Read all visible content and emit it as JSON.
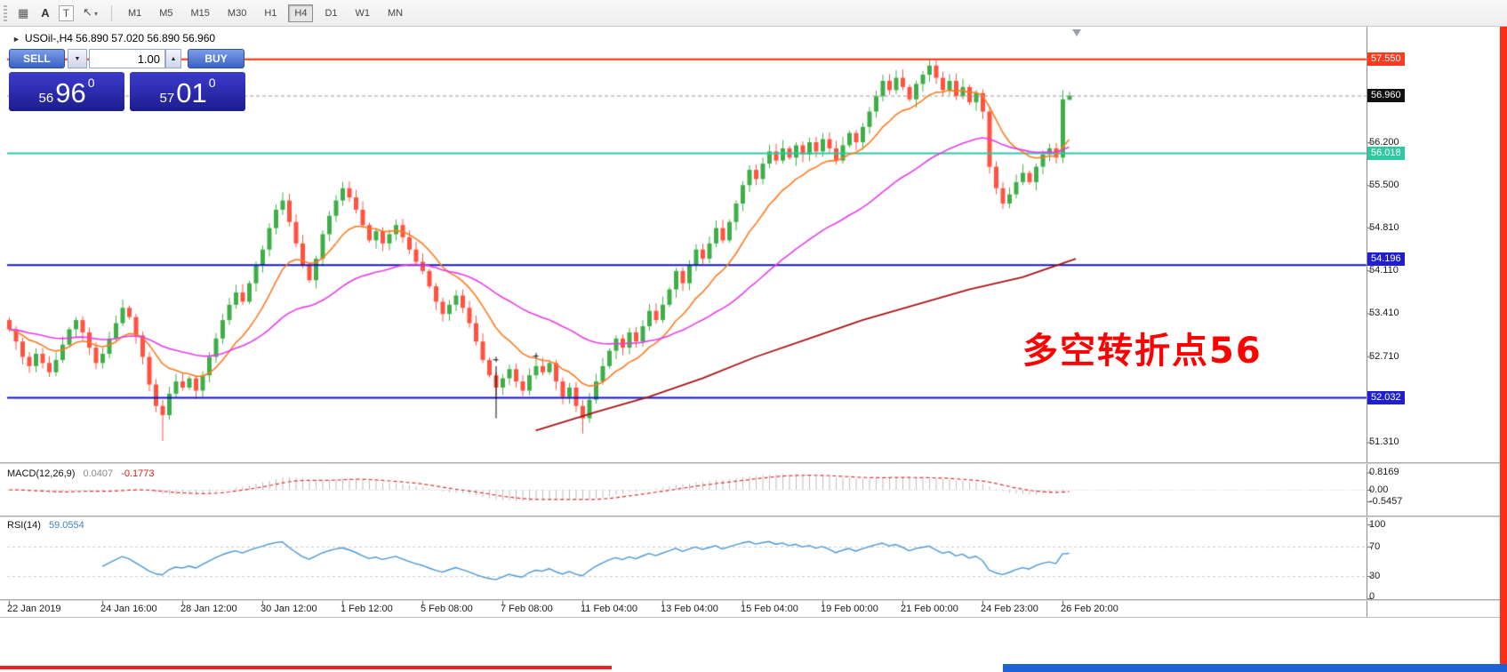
{
  "toolbar": {
    "timeframes": [
      "M1",
      "M5",
      "M15",
      "M30",
      "H1",
      "H4",
      "D1",
      "W1",
      "MN"
    ],
    "active_timeframe": "H4",
    "icons": {
      "grid": "▦",
      "text_a": "A",
      "text_t": "T",
      "cursor": "↖",
      "dropdown": "▾"
    }
  },
  "chart_header": {
    "marker": "►",
    "text": "USOil-,H4  56.890 57.020 56.890 56.960"
  },
  "trade_panel": {
    "sell_label": "SELL",
    "buy_label": "BUY",
    "volume": "1.00",
    "dropdown_glyph": "▼",
    "stepper_glyph": "▲",
    "bid": {
      "small": "56",
      "big": "96",
      "sup": "0"
    },
    "ask": {
      "small": "57",
      "big": "01",
      "sup": "0"
    },
    "button_color": "#3a63c4",
    "panel_color": "#2323b0"
  },
  "annotation": {
    "text": "多空转折点56",
    "color": "#ff0000"
  },
  "price_axis": {
    "ticks": [
      {
        "label": "56.200",
        "price": 56.2
      },
      {
        "label": "55.500",
        "price": 55.5
      },
      {
        "label": "54.810",
        "price": 54.81
      },
      {
        "label": "54.110",
        "price": 54.11
      },
      {
        "label": "53.410",
        "price": 53.41
      },
      {
        "label": "52.710",
        "price": 52.71
      },
      {
        "label": "51.310",
        "price": 51.31
      }
    ],
    "special": [
      {
        "label": "57.550",
        "price": 57.55,
        "bg": "#ff3b1f"
      },
      {
        "label": "56.960",
        "price": 56.96,
        "bg": "#101010"
      },
      {
        "label": "56.018",
        "price": 56.018,
        "bg": "#2ec9a0"
      },
      {
        "label": "54.196",
        "price": 54.196,
        "bg": "#1f1fd0"
      },
      {
        "label": "52.032",
        "price": 52.032,
        "bg": "#1f1fd0"
      }
    ]
  },
  "macd_panel": {
    "name": "MACD(12,26,9)",
    "value": "0.0407",
    "signal_value": "-0.1773",
    "axis": [
      {
        "label": "0.8169",
        "value": 0.8169
      },
      {
        "label": "0.00",
        "value": 0
      },
      {
        "label": "-0.5457",
        "value": -0.5457
      }
    ]
  },
  "rsi_panel": {
    "name": "RSI(14)",
    "value": "59.0554",
    "axis": [
      {
        "label": "100",
        "value": 100
      },
      {
        "label": "70",
        "value": 70
      },
      {
        "label": "30",
        "value": 30
      },
      {
        "label": "0",
        "value": 0
      }
    ],
    "levels": [
      70,
      30
    ]
  },
  "xaxis": {
    "labels": [
      {
        "index": 0,
        "text": "22 Jan 2019"
      },
      {
        "index": 14,
        "text": "24 Jan 16:00"
      },
      {
        "index": 26,
        "text": "28 Jan 12:00"
      },
      {
        "index": 38,
        "text": "30 Jan 12:00"
      },
      {
        "index": 50,
        "text": "1 Feb 12:00"
      },
      {
        "index": 62,
        "text": "5 Feb 08:00"
      },
      {
        "index": 74,
        "text": "7 Feb 08:00"
      },
      {
        "index": 86,
        "text": "11 Feb 04:00"
      },
      {
        "index": 98,
        "text": "13 Feb 04:00"
      },
      {
        "index": 110,
        "text": "15 Feb 04:00"
      },
      {
        "index": 122,
        "text": "19 Feb 00:00"
      },
      {
        "index": 134,
        "text": "21 Feb 00:00"
      },
      {
        "index": 146,
        "text": "24 Feb 23:00"
      },
      {
        "index": 158,
        "text": "26 Feb 20:00"
      }
    ]
  },
  "chart_data": {
    "type": "candlestick",
    "symbol": "USOil-",
    "timeframe": "H4",
    "last_ohlc": {
      "open": 56.89,
      "high": 57.02,
      "low": 56.89,
      "close": 56.96
    },
    "up_color": "#3fae49",
    "down_color": "#ff5240",
    "first_open": 53.3,
    "closes": [
      53.15,
      52.95,
      52.7,
      52.55,
      52.75,
      52.6,
      52.45,
      52.65,
      52.9,
      53.15,
      53.3,
      53.1,
      52.85,
      52.6,
      52.75,
      53.0,
      53.25,
      53.5,
      53.35,
      53.05,
      52.7,
      52.25,
      51.9,
      51.75,
      52.1,
      52.3,
      52.2,
      52.35,
      52.15,
      52.4,
      52.7,
      53.0,
      53.3,
      53.55,
      53.75,
      53.6,
      53.9,
      54.2,
      54.45,
      54.8,
      55.1,
      55.25,
      54.9,
      54.55,
      54.2,
      53.95,
      54.3,
      54.7,
      55.0,
      55.25,
      55.45,
      55.3,
      55.1,
      54.85,
      54.6,
      54.75,
      54.55,
      54.7,
      54.85,
      54.65,
      54.45,
      54.25,
      54.1,
      53.85,
      53.6,
      53.4,
      53.55,
      53.7,
      53.5,
      53.25,
      52.95,
      52.65,
      52.4,
      52.2,
      52.35,
      52.5,
      52.3,
      52.15,
      52.4,
      52.55,
      52.45,
      52.6,
      52.3,
      52.05,
      52.2,
      51.9,
      51.7,
      52.0,
      52.3,
      52.55,
      52.8,
      53.0,
      52.85,
      53.1,
      52.95,
      53.2,
      53.45,
      53.3,
      53.55,
      53.8,
      54.1,
      53.9,
      54.2,
      54.45,
      54.3,
      54.55,
      54.8,
      54.6,
      54.9,
      55.2,
      55.5,
      55.75,
      55.6,
      55.85,
      56.05,
      55.9,
      56.1,
      55.95,
      56.15,
      56.0,
      56.2,
      56.05,
      56.25,
      56.1,
      55.9,
      56.15,
      56.35,
      56.2,
      56.45,
      56.7,
      56.95,
      57.2,
      57.05,
      57.25,
      57.1,
      56.9,
      57.15,
      57.3,
      57.45,
      57.25,
      57.05,
      57.2,
      56.95,
      57.1,
      56.85,
      57.0,
      56.7,
      55.8,
      55.45,
      55.2,
      55.35,
      55.55,
      55.7,
      55.55,
      55.8,
      56.0,
      56.1,
      55.95,
      56.9,
      56.96
    ],
    "overrides": {
      "23": {
        "low": 51.33
      },
      "41": {
        "high": 55.38
      },
      "86": {
        "low": 51.45
      },
      "138": {
        "high": 57.55
      },
      "158": {
        "high": 57.05
      },
      "159": {
        "open": 56.89,
        "high": 57.02,
        "low": 56.89,
        "close": 56.96
      }
    },
    "moving_averages": [
      {
        "type": "ema",
        "period": 12,
        "color": "#ff7a1e"
      },
      {
        "type": "ema",
        "period": 40,
        "color": "#e83ae8"
      }
    ],
    "slow_ma": {
      "color": "#a81414",
      "points": [
        [
          79,
          51.5
        ],
        [
          88,
          51.8
        ],
        [
          96,
          52.05
        ],
        [
          104,
          52.35
        ],
        [
          112,
          52.7
        ],
        [
          120,
          53.0
        ],
        [
          128,
          53.3
        ],
        [
          136,
          53.55
        ],
        [
          144,
          53.8
        ],
        [
          152,
          54.0
        ],
        [
          160,
          54.3
        ]
      ]
    },
    "hlines": [
      {
        "price": 57.55,
        "color": "#ff2a00"
      },
      {
        "price": 56.018,
        "color": "#2ec9a0"
      },
      {
        "price": 54.196,
        "color": "#1414c8"
      },
      {
        "price": 52.032,
        "color": "#1414c8"
      }
    ],
    "bid_line": {
      "price": 56.96,
      "color": "#9a9a9a"
    },
    "macd": {
      "fast": 12,
      "slow": 26,
      "signal": 9,
      "hist_color": "#bdbdbd",
      "signal_color": "#e03030"
    },
    "rsi": {
      "period": 14,
      "color": "#4a96d2",
      "level_color": "#c9c9c9"
    },
    "objects": {
      "vline": {
        "index": 73,
        "from": 52.55,
        "to": 51.7,
        "color": "#000000"
      },
      "marks": [
        {
          "index": 73,
          "price": 52.66
        },
        {
          "index": 79,
          "price": 52.72
        }
      ]
    }
  }
}
